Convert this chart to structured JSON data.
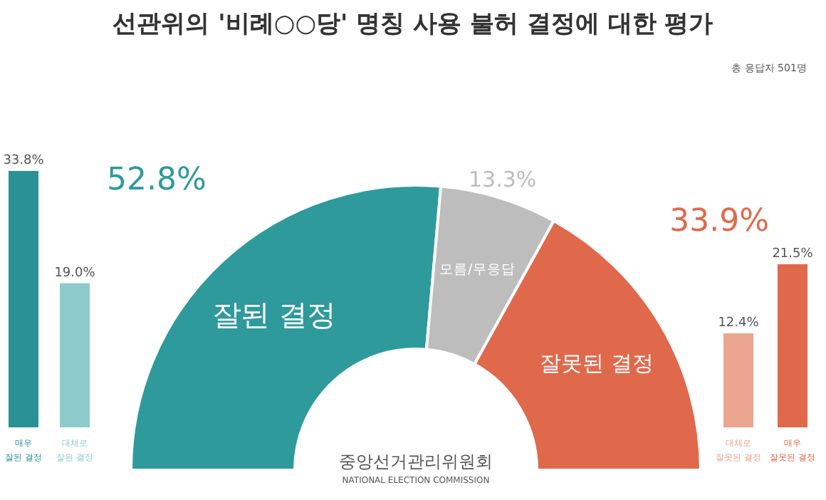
{
  "chart_data": [
    {
      "type": "bar",
      "categories": [
        "매우 잘된 결정",
        "대체로 잘된 결정"
      ],
      "values": [
        33.8,
        19.0
      ],
      "colors": [
        "#2a9296",
        "#8ecbcc"
      ],
      "value_labels": [
        "33.8%",
        "19.0%"
      ]
    },
    {
      "type": "donut",
      "title": "선관위의 '비례○○당' 명칭 사용 불허 결정에 대한 평가",
      "subtitle": "총 응답자 501명",
      "categories": [
        "잘된 결정",
        "모름/무응답",
        "잘못된 결정"
      ],
      "values": [
        52.8,
        13.3,
        33.9
      ],
      "colors": [
        "#2e9a9c",
        "#bdbdbd",
        "#e0694c"
      ],
      "value_labels": [
        "52.8%",
        "13.3%",
        "33.9%"
      ],
      "annotations": [
        "중앙선거관리위원회",
        "NATIONAL ELECTION COMMISSION"
      ]
    },
    {
      "type": "bar",
      "categories": [
        "대체로 잘못된 결정",
        "매우 잘못된 결정"
      ],
      "values": [
        12.4,
        21.5
      ],
      "colors": [
        "#eba58f",
        "#e0694c"
      ],
      "value_labels": [
        "12.4%",
        "21.5%"
      ]
    }
  ]
}
